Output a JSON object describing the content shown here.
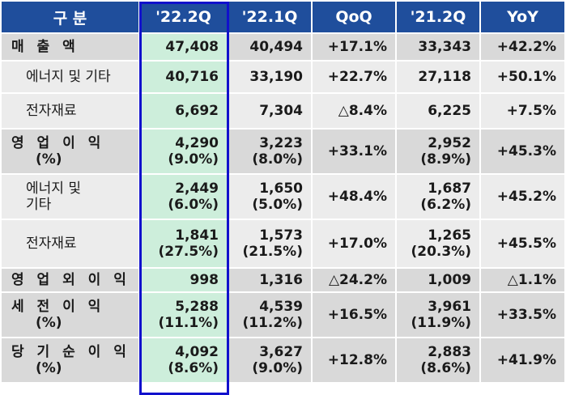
{
  "header": {
    "col0": "구 분",
    "col1": "'22.2Q",
    "col2": "'22.1Q",
    "col3": "QoQ",
    "col4": "'21.2Q",
    "col5": "YoY"
  },
  "rows": [
    {
      "label": "매 출 액",
      "sub": "",
      "v1": "47,408",
      "v2": "40,494",
      "qoq": "+17.1%",
      "v4": "33,343",
      "yoy": "+42.2%"
    },
    {
      "label": "에너지 및 기타",
      "sub": "",
      "v1": "40,716",
      "v2": "33,190",
      "qoq": "+22.7%",
      "v4": "27,118",
      "yoy": "+50.1%"
    },
    {
      "label": "전자재료",
      "sub": "",
      "v1": "6,692",
      "v2": "7,304",
      "qoq": "△8.4%",
      "v4": "6,225",
      "yoy": "+7.5%"
    },
    {
      "label": "영 업 이 익",
      "sub": "(%)",
      "v1": "4,290",
      "v1b": "(9.0%)",
      "v2": "3,223",
      "v2b": "(8.0%)",
      "qoq": "+33.1%",
      "v4": "2,952",
      "v4b": "(8.9%)",
      "yoy": "+45.3%"
    },
    {
      "label": "에너지 및",
      "sub": "기타",
      "v1": "2,449",
      "v1b": "(6.0%)",
      "v2": "1,650",
      "v2b": "(5.0%)",
      "qoq": "+48.4%",
      "v4": "1,687",
      "v4b": "(6.2%)",
      "yoy": "+45.2%"
    },
    {
      "label": "전자재료",
      "sub": "",
      "v1": "1,841",
      "v1b": "(27.5%)",
      "v2": "1,573",
      "v2b": "(21.5%)",
      "qoq": "+17.0%",
      "v4": "1,265",
      "v4b": "(20.3%)",
      "yoy": "+45.5%"
    },
    {
      "label": "영 업 외 이 익",
      "sub": "",
      "v1": "998",
      "v2": "1,316",
      "qoq": "△24.2%",
      "v4": "1,009",
      "yoy": "△1.1%"
    },
    {
      "label": "세 전 이 익",
      "sub": "(%)",
      "v1": "5,288",
      "v1b": "(11.1%)",
      "v2": "4,539",
      "v2b": "(11.2%)",
      "qoq": "+16.5%",
      "v4": "3,961",
      "v4b": "(11.9%)",
      "yoy": "+33.5%"
    },
    {
      "label": "당 기 순 이 익",
      "sub": "(%)",
      "v1": "4,092",
      "v1b": "(8.6%)",
      "v2": "3,627",
      "v2b": "(9.0%)",
      "qoq": "+12.8%",
      "v4": "2,883",
      "v4b": "(8.6%)",
      "yoy": "+41.9%"
    }
  ],
  "colors": {
    "header": "#1f4e9c",
    "highlight_fill": "#cdeedb",
    "highlight_border": "#1111cc"
  }
}
